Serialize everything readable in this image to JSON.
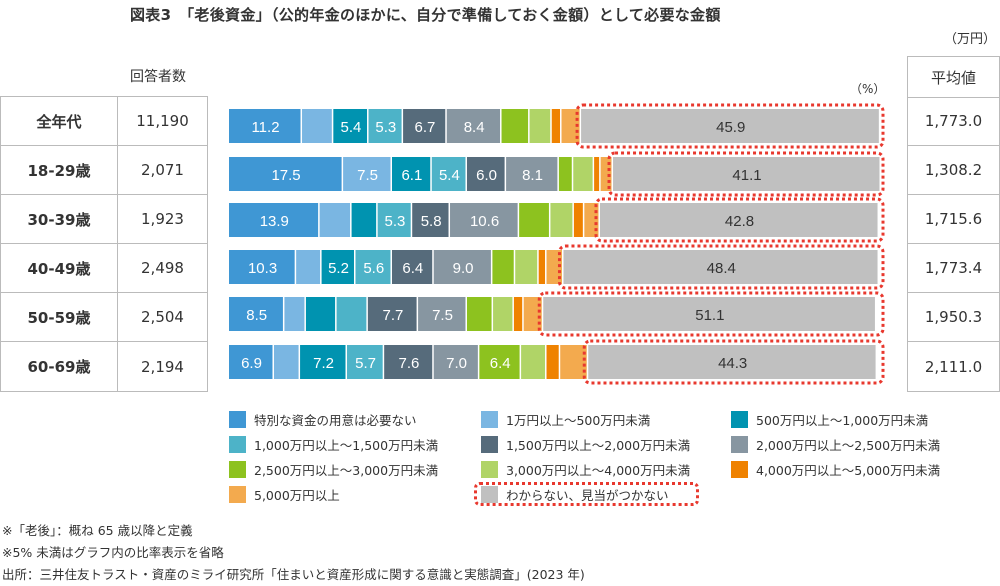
{
  "chart_data": {
    "type": "bar",
    "orientation": "horizontal",
    "stacked": true,
    "title": "図表3　「老後資金」（公的年金のほかに、自分で準備しておく金額）として必要な金額",
    "unit_percent": "（%）",
    "unit_avg": "（万円）",
    "count_header": "回答者数",
    "avg_header": "平均値",
    "xlim": [
      0,
      100
    ],
    "legend_position": "bottom",
    "categories": [
      "全年代",
      "18-29歳",
      "30-39歳",
      "40-49歳",
      "50-59歳",
      "60-69歳"
    ],
    "counts": [
      "11,190",
      "2,071",
      "1,923",
      "2,498",
      "2,504",
      "2,194"
    ],
    "averages": [
      "1,773.0",
      "1,308.2",
      "1,715.6",
      "1,773.4",
      "1,950.3",
      "2,111.0"
    ],
    "series": [
      {
        "name": "特別な資金の用意は必要ない",
        "color": "#3f97d4",
        "values": [
          11.2,
          17.5,
          13.9,
          10.3,
          8.5,
          6.9
        ]
      },
      {
        "name": "1万円以上～500万円未満",
        "color": "#7ab6e2",
        "values": [
          4.8,
          7.5,
          4.9,
          3.9,
          3.3,
          4.0
        ]
      },
      {
        "name": "500万円以上～1,000万円未満",
        "color": "#0093b0",
        "values": [
          5.4,
          6.1,
          4.0,
          5.2,
          4.7,
          7.2
        ]
      },
      {
        "name": "1,000万円以上～1,500万円未満",
        "color": "#4db3c8",
        "values": [
          5.3,
          5.4,
          5.3,
          5.6,
          4.8,
          5.7
        ]
      },
      {
        "name": "1,500万円以上～2,000万円未満",
        "color": "#566b7b",
        "values": [
          6.7,
          6.0,
          5.8,
          6.4,
          7.7,
          7.6
        ]
      },
      {
        "name": "2,000万円以上～2,500万円未満",
        "color": "#8796a1",
        "values": [
          8.4,
          8.1,
          10.6,
          9.0,
          7.5,
          7.0
        ]
      },
      {
        "name": "2,500万円以上～3,000万円未満",
        "color": "#8dc21f",
        "values": [
          4.3,
          2.2,
          4.8,
          3.5,
          4.0,
          6.4
        ]
      },
      {
        "name": "3,000万円以上～4,000万円未満",
        "color": "#b0d467",
        "values": [
          3.4,
          3.2,
          3.6,
          3.6,
          3.2,
          3.9
        ]
      },
      {
        "name": "4,000万円以上～5,000万円未満",
        "color": "#ef8200",
        "values": [
          1.5,
          1.0,
          1.6,
          1.2,
          1.5,
          2.1
        ]
      },
      {
        "name": "5,000万円以上",
        "color": "#f3aa4e",
        "values": [
          3.0,
          1.9,
          2.4,
          2.6,
          3.0,
          4.3
        ]
      },
      {
        "name": "わからない、見当がつかない",
        "color": "#c0c0c0",
        "values": [
          45.9,
          41.1,
          42.8,
          48.4,
          51.1,
          44.3
        ],
        "highlight": "#e8382e"
      }
    ],
    "label_threshold": 5
  },
  "notes": [
    "※「老後」：概ね 65 歳以降と定義",
    "※5% 未満はグラフ内の比率表示を省略",
    "出所：三井住友トラスト・資産のミライ研究所「住まいと資産形成に関する意識と実態調査」(2023 年)"
  ]
}
